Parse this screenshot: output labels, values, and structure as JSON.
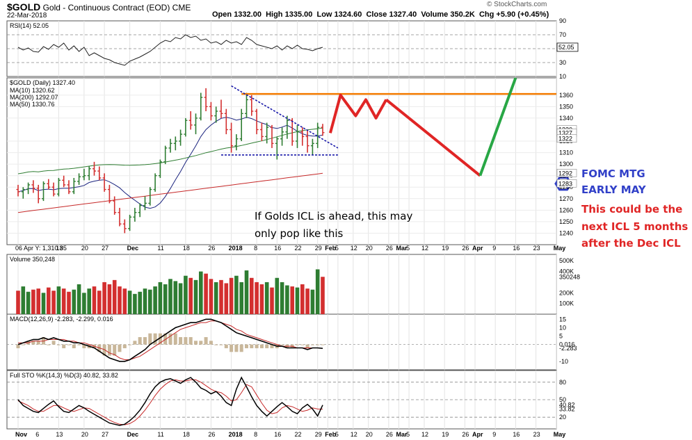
{
  "header": {
    "symbol": "$GOLD",
    "name": "Gold - Continuous Contract (EOD)",
    "exchange": "CME",
    "date": "22-Mar-2018",
    "open_label": "Open",
    "open": "1332.00",
    "high_label": "High",
    "high": "1335.00",
    "low_label": "Low",
    "low": "1324.60",
    "close_label": "Close",
    "close": "1327.40",
    "volume_label": "Volume",
    "volume": "350.2K",
    "chg_label": "Chg",
    "chg": "+5.90 (+0.45%)",
    "brand": "© StockCharts.com"
  },
  "chart_data": [
    {
      "type": "line",
      "panel": "rsi",
      "legend": "RSI(14) 52.05",
      "ylim": [
        10,
        90
      ],
      "ticks": [
        90,
        70,
        50,
        30,
        10
      ],
      "current_label": "52.05",
      "guide_levels": [
        70,
        50,
        30
      ],
      "values": [
        52,
        48,
        51,
        46,
        45,
        53,
        49,
        56,
        52,
        58,
        48,
        54,
        46,
        52,
        40,
        44,
        40,
        36,
        34,
        30,
        28,
        26,
        32,
        35,
        38,
        42,
        46,
        52,
        58,
        62,
        60,
        66,
        64,
        70,
        66,
        68,
        62,
        64,
        58,
        60,
        56,
        62,
        58,
        60,
        56,
        66,
        62,
        56,
        54,
        52,
        50,
        54,
        48,
        54,
        50,
        55,
        50,
        49,
        47,
        50,
        52
      ]
    },
    {
      "type": "candlestick",
      "panel": "price",
      "legend": "$GOLD (Daily) 1327.40",
      "ylim": [
        1230,
        1375
      ],
      "ticks": [
        1360,
        1350,
        1340,
        1320,
        1310,
        1300,
        1290,
        1280,
        1270,
        1260,
        1250,
        1240
      ],
      "ticks_right_edge": [
        "1330",
        "1327",
        "1322",
        "1292",
        "1283"
      ],
      "ohlc": [
        [
          1278,
          1282,
          1272,
          1276
        ],
        [
          1276,
          1280,
          1270,
          1278
        ],
        [
          1278,
          1284,
          1274,
          1282
        ],
        [
          1282,
          1286,
          1275,
          1279
        ],
        [
          1279,
          1282,
          1266,
          1270
        ],
        [
          1270,
          1285,
          1268,
          1283
        ],
        [
          1283,
          1287,
          1278,
          1280
        ],
        [
          1280,
          1284,
          1272,
          1274
        ],
        [
          1274,
          1288,
          1272,
          1286
        ],
        [
          1286,
          1290,
          1280,
          1282
        ],
        [
          1282,
          1286,
          1274,
          1276
        ],
        [
          1276,
          1288,
          1274,
          1285
        ],
        [
          1285,
          1292,
          1282,
          1289
        ],
        [
          1289,
          1296,
          1286,
          1290
        ],
        [
          1290,
          1298,
          1286,
          1296
        ],
        [
          1296,
          1302,
          1290,
          1294
        ],
        [
          1294,
          1298,
          1286,
          1288
        ],
        [
          1288,
          1292,
          1276,
          1278
        ],
        [
          1278,
          1282,
          1266,
          1268
        ],
        [
          1268,
          1272,
          1256,
          1258
        ],
        [
          1258,
          1262,
          1246,
          1248
        ],
        [
          1248,
          1252,
          1240,
          1244
        ],
        [
          1244,
          1256,
          1242,
          1254
        ],
        [
          1254,
          1262,
          1250,
          1258
        ],
        [
          1258,
          1266,
          1254,
          1264
        ],
        [
          1264,
          1272,
          1260,
          1266
        ],
        [
          1266,
          1280,
          1264,
          1278
        ],
        [
          1278,
          1292,
          1276,
          1290
        ],
        [
          1290,
          1304,
          1288,
          1302
        ],
        [
          1302,
          1316,
          1300,
          1314
        ],
        [
          1314,
          1322,
          1310,
          1318
        ],
        [
          1318,
          1324,
          1312,
          1320
        ],
        [
          1320,
          1330,
          1316,
          1326
        ],
        [
          1326,
          1340,
          1324,
          1338
        ],
        [
          1338,
          1346,
          1330,
          1334
        ],
        [
          1334,
          1344,
          1326,
          1340
        ],
        [
          1340,
          1362,
          1338,
          1358
        ],
        [
          1358,
          1366,
          1346,
          1350
        ],
        [
          1350,
          1354,
          1338,
          1342
        ],
        [
          1342,
          1350,
          1336,
          1346
        ],
        [
          1346,
          1356,
          1340,
          1344
        ],
        [
          1344,
          1348,
          1326,
          1330
        ],
        [
          1330,
          1336,
          1310,
          1316
        ],
        [
          1316,
          1326,
          1312,
          1322
        ],
        [
          1322,
          1348,
          1320,
          1344
        ],
        [
          1344,
          1362,
          1340,
          1356
        ],
        [
          1356,
          1360,
          1342,
          1346
        ],
        [
          1346,
          1348,
          1326,
          1330
        ],
        [
          1330,
          1336,
          1320,
          1324
        ],
        [
          1324,
          1336,
          1318,
          1332
        ],
        [
          1332,
          1334,
          1314,
          1318
        ],
        [
          1318,
          1324,
          1304,
          1322
        ],
        [
          1322,
          1332,
          1316,
          1328
        ],
        [
          1328,
          1342,
          1322,
          1338
        ],
        [
          1338,
          1340,
          1316,
          1320
        ],
        [
          1320,
          1334,
          1314,
          1328
        ],
        [
          1328,
          1332,
          1316,
          1324
        ],
        [
          1324,
          1330,
          1310,
          1316
        ],
        [
          1316,
          1322,
          1308,
          1318
        ],
        [
          1318,
          1336,
          1314,
          1332
        ],
        [
          1332,
          1335,
          1324.6,
          1327.4
        ]
      ],
      "ma": [
        {
          "name": "MA(10)",
          "value": "1320.62",
          "color": "#1a237e",
          "start": 1282,
          "end": 1320.62
        },
        {
          "name": "MA(200)",
          "value": "1292.07",
          "color": "#c62828",
          "start": 1258,
          "end": 1292.07
        },
        {
          "name": "MA(50)",
          "value": "1330.76",
          "color": "#2e7d32",
          "start": 1300,
          "end": 1330.76
        }
      ],
      "resistance_level": 1361,
      "support_level": 1308,
      "downtrend_line": {
        "from": [
          42,
          1368
        ],
        "to": [
          63,
          1314
        ]
      },
      "projection": {
        "up_phase": [
          [
            61.5,
            1327
          ],
          [
            63.5,
            1360
          ],
          [
            66.5,
            1342
          ],
          [
            68.5,
            1356
          ],
          [
            70.5,
            1340
          ],
          [
            72.5,
            1356
          ]
        ],
        "down_phase": [
          [
            72.5,
            1356
          ],
          [
            91,
            1290
          ]
        ],
        "rally": [
          [
            91,
            1290
          ],
          [
            98,
            1375
          ]
        ]
      },
      "annotation_main": [
        "If Golds ICL is ahead,  this may",
        "only pop like this"
      ],
      "annotation_fomc": [
        "FOMC MTG",
        "EARLY MAY"
      ],
      "annotation_icl": [
        "This could be the",
        "next ICL 5 months",
        "after the Dec ICL"
      ],
      "hexagon_label": "1283"
    },
    {
      "type": "bar",
      "panel": "volume",
      "legend": "Volume 350,248",
      "ticks": [
        "500K",
        "400K",
        "350248",
        "200K",
        "100K"
      ],
      "ylim": [
        0,
        560
      ],
      "values": [
        220,
        260,
        210,
        230,
        240,
        200,
        250,
        220,
        260,
        240,
        210,
        230,
        280,
        200,
        240,
        260,
        220,
        300,
        280,
        320,
        260,
        240,
        220,
        190,
        210,
        240,
        230,
        260,
        300,
        280,
        330,
        310,
        290,
        360,
        340,
        320,
        400,
        380,
        330,
        300,
        320,
        290,
        340,
        360,
        300,
        410,
        340,
        300,
        280,
        300,
        250,
        340,
        300,
        270,
        260,
        250,
        280,
        240,
        230,
        420,
        350
      ],
      "colors": "green when close ≥ open, red otherwise"
    },
    {
      "type": "line",
      "panel": "macd",
      "legend_label": "MACD(12,26,9)",
      "legend_values": [
        "-2.283",
        "-2.299",
        "0.016"
      ],
      "ticks": [
        "15",
        "10",
        "5",
        "0.016",
        "-2.283",
        "-10"
      ],
      "ylim": [
        -15,
        18
      ],
      "macd": [
        0,
        1,
        2,
        3,
        3,
        4,
        3,
        4,
        3,
        2,
        2,
        1,
        1,
        0,
        -1,
        -2,
        -4,
        -6,
        -8,
        -9,
        -10,
        -10,
        -9,
        -7,
        -5,
        -3,
        0,
        2,
        4,
        6,
        8,
        10,
        11,
        12,
        13,
        13,
        14,
        15,
        15,
        14,
        13,
        11,
        9,
        7,
        6,
        5,
        4,
        3,
        2,
        1,
        0,
        -1,
        -1,
        -2,
        -2,
        -2,
        -2,
        -3,
        -2,
        -2,
        -2.283
      ],
      "signal": [
        1,
        1,
        1,
        2,
        2,
        2,
        3,
        3,
        3,
        3,
        2,
        2,
        1,
        1,
        0,
        -1,
        -2,
        -3,
        -5,
        -6,
        -8,
        -9,
        -9,
        -8,
        -7,
        -5,
        -3,
        -1,
        1,
        3,
        5,
        7,
        9,
        10,
        11,
        12,
        13,
        13,
        14,
        14,
        13,
        12,
        11,
        9,
        8,
        6,
        5,
        4,
        3,
        2,
        1,
        0,
        -1,
        -1,
        -1,
        -2,
        -2,
        -2,
        -2,
        -2,
        -2.299
      ]
    },
    {
      "type": "line",
      "panel": "stochastic",
      "legend_label": "Full STO %K(14,3) %D(3)",
      "legend_values": [
        "40.82",
        "33.82"
      ],
      "ticks": [
        "80",
        "50",
        "40.82",
        "33.82",
        "20"
      ],
      "ylim": [
        0,
        100
      ],
      "k": [
        50,
        40,
        35,
        30,
        28,
        35,
        42,
        48,
        38,
        30,
        28,
        34,
        40,
        36,
        30,
        25,
        20,
        15,
        10,
        8,
        6,
        8,
        14,
        22,
        32,
        45,
        60,
        72,
        80,
        84,
        86,
        82,
        78,
        84,
        88,
        80,
        70,
        66,
        60,
        64,
        56,
        45,
        40,
        68,
        88,
        72,
        55,
        40,
        30,
        22,
        30,
        38,
        45,
        38,
        30,
        26,
        36,
        42,
        34,
        22,
        40.82
      ],
      "d": [
        48,
        44,
        40,
        34,
        30,
        30,
        35,
        40,
        40,
        36,
        32,
        30,
        33,
        36,
        35,
        30,
        25,
        20,
        15,
        11,
        8,
        7,
        9,
        14,
        22,
        32,
        44,
        57,
        68,
        76,
        82,
        84,
        82,
        82,
        84,
        84,
        80,
        74,
        68,
        64,
        62,
        56,
        48,
        50,
        62,
        76,
        72,
        58,
        44,
        32,
        26,
        28,
        36,
        40,
        38,
        34,
        30,
        32,
        36,
        34,
        33.82
      ]
    }
  ],
  "x_axis": {
    "top_axis_labels": [
      {
        "i": 0,
        "t": "06 Apr Y: 1,310.85"
      },
      {
        "i": 8,
        "t": "13"
      },
      {
        "i": 13,
        "t": "20"
      },
      {
        "i": 17,
        "t": "27"
      },
      {
        "i": 22,
        "t": "Dec",
        "bold": true
      },
      {
        "i": 28,
        "t": "11"
      },
      {
        "i": 33,
        "t": "18"
      },
      {
        "i": 38,
        "t": "26"
      },
      {
        "i": 42,
        "t": "2018",
        "bold": true
      },
      {
        "i": 47,
        "t": "8"
      },
      {
        "i": 51,
        "t": "16"
      },
      {
        "i": 55,
        "t": "22"
      },
      {
        "i": 59,
        "t": "29"
      },
      {
        "i": 61,
        "t": "Feb",
        "bold": true
      },
      {
        "i": 63,
        "t": "5"
      },
      {
        "i": 66,
        "t": "12"
      },
      {
        "i": 69,
        "t": "20"
      },
      {
        "i": 73,
        "t": "26"
      },
      {
        "i": 75,
        "t": "Mar",
        "bold": true
      },
      {
        "i": 77,
        "t": "5"
      },
      {
        "i": 80,
        "t": "12"
      },
      {
        "i": 84,
        "t": "19"
      },
      {
        "i": 88,
        "t": "26"
      },
      {
        "i": 90,
        "t": "Apr",
        "bold": true
      },
      {
        "i": 94,
        "t": "9"
      },
      {
        "i": 98,
        "t": "16"
      },
      {
        "i": 102,
        "t": "23"
      },
      {
        "i": 106,
        "t": "May",
        "bold": true
      }
    ],
    "bottom_axis_labels": [
      {
        "i": 0,
        "t": "Nov",
        "bold": true
      },
      {
        "i": 4,
        "t": "6"
      },
      {
        "i": 8,
        "t": "13"
      },
      {
        "i": 13,
        "t": "20"
      },
      {
        "i": 17,
        "t": "27"
      },
      {
        "i": 22,
        "t": "Dec",
        "bold": true
      },
      {
        "i": 28,
        "t": "11"
      },
      {
        "i": 33,
        "t": "18"
      },
      {
        "i": 38,
        "t": "26"
      },
      {
        "i": 42,
        "t": "2018",
        "bold": true
      },
      {
        "i": 47,
        "t": "8"
      },
      {
        "i": 51,
        "t": "16"
      },
      {
        "i": 55,
        "t": "22"
      },
      {
        "i": 59,
        "t": "29"
      },
      {
        "i": 61,
        "t": "Feb",
        "bold": true
      },
      {
        "i": 63,
        "t": "5"
      },
      {
        "i": 66,
        "t": "12"
      },
      {
        "i": 69,
        "t": "20"
      },
      {
        "i": 73,
        "t": "26"
      },
      {
        "i": 75,
        "t": "Mar",
        "bold": true
      },
      {
        "i": 77,
        "t": "5"
      },
      {
        "i": 80,
        "t": "12"
      },
      {
        "i": 84,
        "t": "19"
      },
      {
        "i": 88,
        "t": "26"
      },
      {
        "i": 90,
        "t": "Apr",
        "bold": true
      },
      {
        "i": 94,
        "t": "9"
      },
      {
        "i": 98,
        "t": "16"
      },
      {
        "i": 102,
        "t": "23"
      },
      {
        "i": 106,
        "t": "May",
        "bold": true
      }
    ]
  },
  "colors": {
    "up": "#2e7d32",
    "down": "#d32f2f",
    "resistance": "#f57c00",
    "trendline": "#1a1aaa",
    "projection_red": "#e02525",
    "projection_green": "#28a745",
    "hexagon": "#3140c8",
    "macd_line": "#000000",
    "macd_signal": "#c62828",
    "macd_hist": "#c9b79a",
    "sto_k": "#000000",
    "sto_d": "#c62828"
  }
}
